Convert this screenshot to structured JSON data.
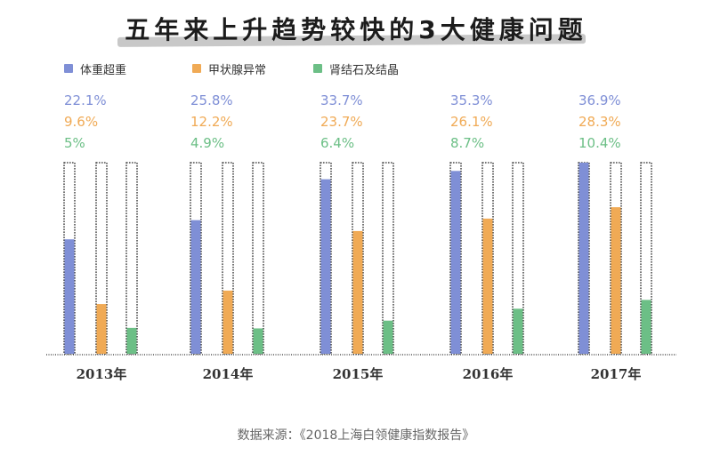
{
  "chart_data": {
    "type": "bar",
    "title": "五年来上升趋势较快的3大健康问题",
    "categories": [
      "2013年",
      "2014年",
      "2015年",
      "2016年",
      "2017年"
    ],
    "series": [
      {
        "name": "体重超重",
        "color": "#7f8fd6",
        "values": [
          22.1,
          25.8,
          33.7,
          35.3,
          36.9
        ],
        "labels": [
          "22.1%",
          "25.8%",
          "33.7%",
          "35.3%",
          "36.9%"
        ]
      },
      {
        "name": "甲状腺异常",
        "color": "#f0aa55",
        "values": [
          9.6,
          12.2,
          23.7,
          26.1,
          28.3
        ],
        "labels": [
          "9.6%",
          "12.2%",
          "23.7%",
          "26.1%",
          "28.3%"
        ]
      },
      {
        "name": "肾结石及结晶",
        "color": "#6cbf86",
        "values": [
          5,
          4.9,
          6.4,
          8.7,
          10.4
        ],
        "labels": [
          "5%",
          "4.9%",
          "6.4%",
          "8.7%",
          "10.4%"
        ]
      }
    ],
    "ylim": [
      0,
      36.9
    ],
    "legend": "top-left",
    "grid": false
  },
  "source": "数据来源：《2018上海白领健康指数报告》"
}
